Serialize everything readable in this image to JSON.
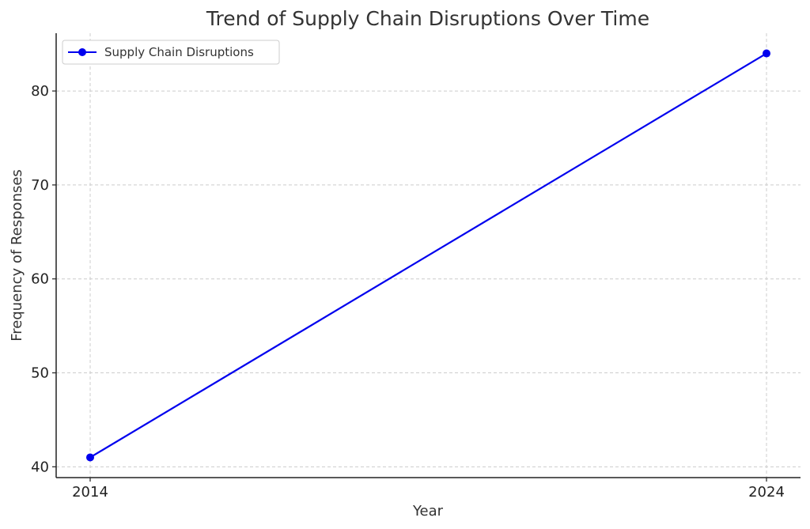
{
  "chart_data": {
    "type": "line",
    "title": "Trend of Supply Chain Disruptions Over Time",
    "xlabel": "Year",
    "ylabel": "Frequency of Responses",
    "x": [
      "2014",
      "2024"
    ],
    "series": [
      {
        "name": "Supply Chain Disruptions",
        "values": [
          41,
          84
        ],
        "color": "#0000ee"
      }
    ],
    "yticks": [
      40,
      50,
      60,
      70,
      80
    ],
    "ylim": [
      38.85,
      86.15
    ],
    "grid": true,
    "legend_position": "top-left"
  }
}
